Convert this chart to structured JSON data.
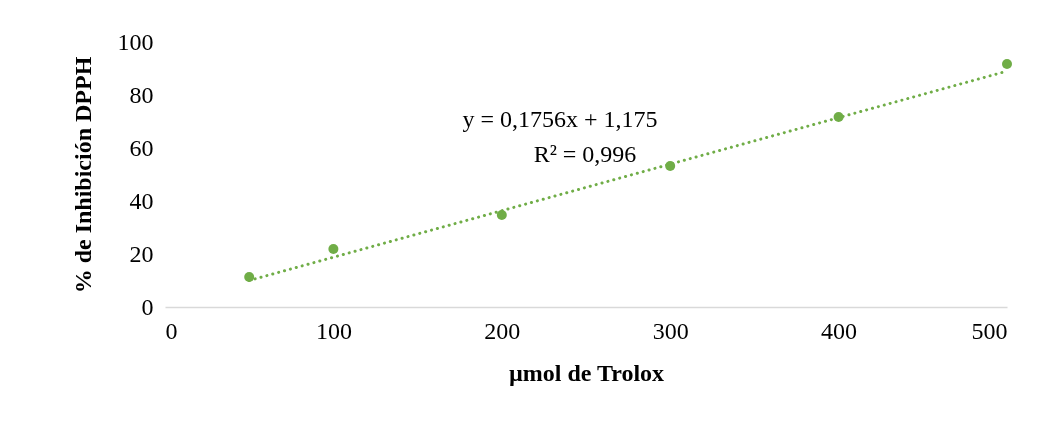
{
  "chart_data": {
    "type": "scatter",
    "xlabel": "µmol de Trolox",
    "ylabel": "% de Inhibición DPPH",
    "x": [
      50,
      100,
      200,
      300,
      400,
      500
    ],
    "series": [
      {
        "color": "#70ad47",
        "marker": "circle",
        "values": [
          11.3,
          21.9,
          34.7,
          53.2,
          71.7,
          91.7
        ]
      },
      {
        "type": "line",
        "color": "#70ad47",
        "line_style": "dotted",
        "marker": "none",
        "x": [
          50,
          500
        ],
        "values": [
          10.0,
          89.0
        ]
      }
    ],
    "annotations": [
      "y = 0,1756x  + 1,175",
      "R² = 0,996"
    ],
    "xlim": [
      0,
      500
    ],
    "xticks": [
      0,
      100,
      200,
      300,
      400,
      500
    ],
    "ylim": [
      0,
      100
    ],
    "yticks": [
      0,
      20,
      40,
      60,
      80,
      100
    ],
    "grid": false
  }
}
